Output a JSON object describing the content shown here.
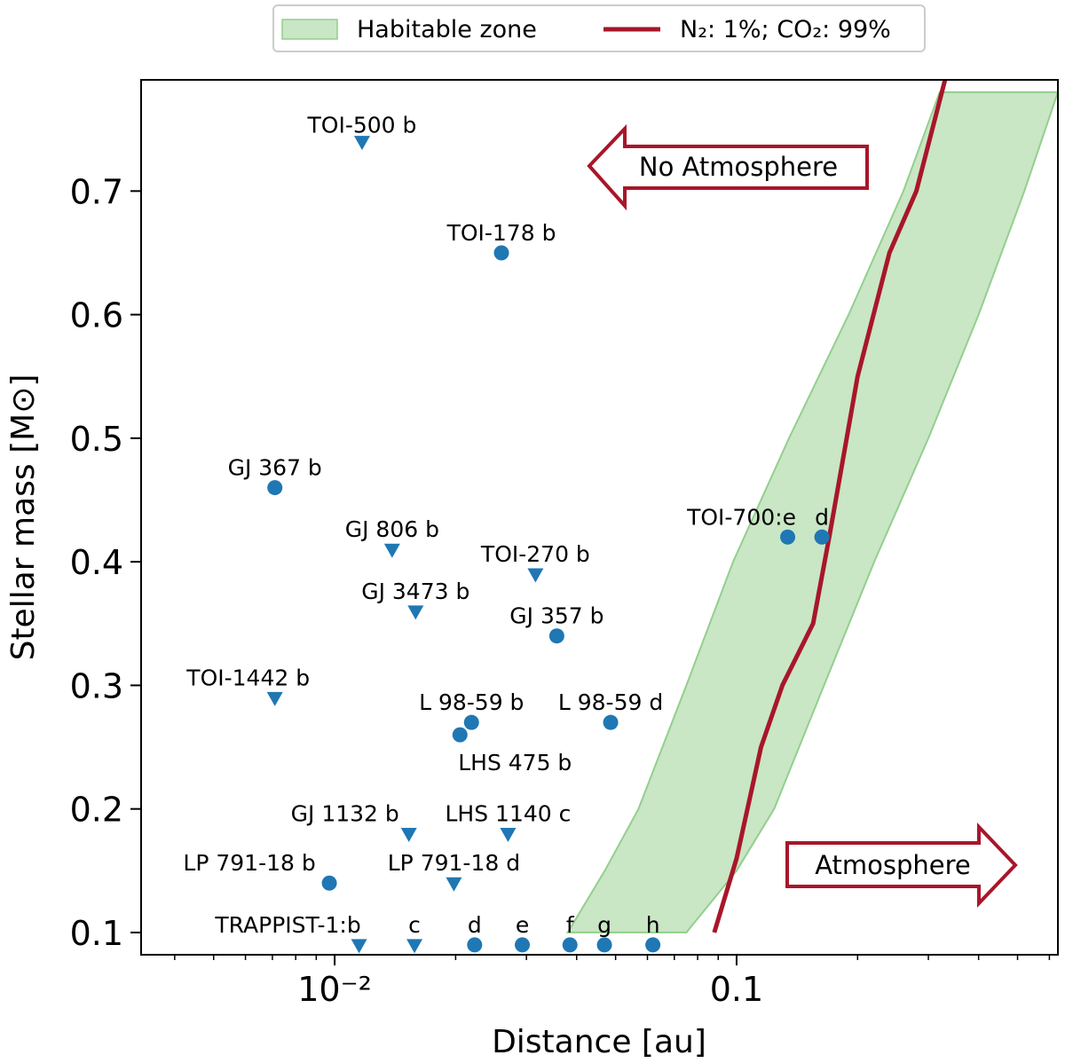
{
  "chart_data": {
    "type": "scatter",
    "xlabel": "Distance [au]",
    "ylabel": "Stellar mass [M⊙]",
    "xscale": "log",
    "xlim": [
      0.0033,
      0.63
    ],
    "ylim": [
      0.082,
      0.79
    ],
    "x_ticks": [
      {
        "value": 0.01,
        "label": "10⁻²"
      },
      {
        "value": 0.1,
        "label": "0.1"
      }
    ],
    "y_ticks": [
      0.1,
      0.2,
      0.3,
      0.4,
      0.5,
      0.6,
      0.7
    ],
    "y_tick_labels": [
      "0.1",
      "0.2",
      "0.3",
      "0.4",
      "0.5",
      "0.6",
      "0.7"
    ],
    "grid": false,
    "legend": {
      "placement": "top-center-outside",
      "entries": [
        {
          "type": "patch",
          "label": "Habitable zone"
        },
        {
          "type": "line",
          "label": "N₂: 1%; CO₂: 99%"
        }
      ]
    },
    "colors": {
      "marker": "#1f77b4",
      "line": "#a8162a",
      "zone_fill": "#c9e6c5",
      "zone_edge": "#93cf8d"
    },
    "habitable_zone": {
      "masses": [
        0.1,
        0.15,
        0.2,
        0.3,
        0.4,
        0.5,
        0.6,
        0.7,
        0.78
      ],
      "inner": [
        0.038,
        0.047,
        0.057,
        0.075,
        0.098,
        0.135,
        0.19,
        0.26,
        0.32
      ],
      "outer": [
        0.075,
        0.1,
        0.124,
        0.165,
        0.22,
        0.3,
        0.4,
        0.52,
        0.63
      ]
    },
    "series": [
      {
        "name": "N₂: 1%; CO₂: 99%",
        "type": "line",
        "x": [
          0.088,
          0.1,
          0.115,
          0.13,
          0.155,
          0.17,
          0.2,
          0.24,
          0.28,
          0.33
        ],
        "y": [
          0.1,
          0.16,
          0.25,
          0.3,
          0.35,
          0.42,
          0.55,
          0.65,
          0.7,
          0.79
        ]
      }
    ],
    "points": [
      {
        "label": "TOI-500 b",
        "x": 0.0117,
        "y": 0.74,
        "marker": "triangle",
        "label_dx": 0.0,
        "label_dy": -10
      },
      {
        "label": "TOI-178 b",
        "x": 0.026,
        "y": 0.65,
        "marker": "circle",
        "label_dx": 0.0,
        "label_dy": -14
      },
      {
        "label": "GJ 367 b",
        "x": 0.0071,
        "y": 0.46,
        "marker": "circle",
        "label_dx": 0.0,
        "label_dy": -14
      },
      {
        "label": "GJ 806 b",
        "x": 0.0139,
        "y": 0.41,
        "marker": "triangle",
        "label_dx": 0.0,
        "label_dy": -14
      },
      {
        "label": "TOI-270 b",
        "x": 0.0316,
        "y": 0.39,
        "marker": "triangle",
        "label_dx": 0.0,
        "label_dy": -14
      },
      {
        "label": "GJ 3473 b",
        "x": 0.0159,
        "y": 0.36,
        "marker": "triangle",
        "label_dx": 0.0,
        "label_dy": -14
      },
      {
        "label": "GJ 357 b",
        "x": 0.0357,
        "y": 0.34,
        "marker": "circle",
        "label_dx": 0.0,
        "label_dy": -14
      },
      {
        "label": "TOI-1442 b",
        "x": 0.0071,
        "y": 0.29,
        "marker": "triangle",
        "label_dx": -30,
        "label_dy": -14
      },
      {
        "label": "L 98-59 b",
        "x": 0.0219,
        "y": 0.27,
        "marker": "circle",
        "label_dx": 0.0,
        "label_dy": -14
      },
      {
        "label": "L 98-59 d",
        "x": 0.0486,
        "y": 0.27,
        "marker": "circle",
        "label_dx": 0.0,
        "label_dy": -14
      },
      {
        "label": "LHS 475 b",
        "x": 0.0205,
        "y": 0.26,
        "marker": "circle",
        "label_dx": 62,
        "label_dy": 40
      },
      {
        "label": "GJ 1132 b",
        "x": 0.0153,
        "y": 0.18,
        "marker": "triangle",
        "label_dx": -72,
        "label_dy": -14
      },
      {
        "label": "LHS 1140 c",
        "x": 0.027,
        "y": 0.18,
        "marker": "triangle",
        "label_dx": 0.0,
        "label_dy": -14
      },
      {
        "label": "LP 791-18 b",
        "x": 0.0097,
        "y": 0.14,
        "marker": "circle",
        "label_dx": -90,
        "label_dy": -14
      },
      {
        "label": "LP 791-18 d",
        "x": 0.0198,
        "y": 0.14,
        "marker": "triangle",
        "label_dx": 0.0,
        "label_dy": -14
      },
      {
        "label": "TRAPPIST-1:b",
        "x": 0.0115,
        "y": 0.09,
        "marker": "triangle",
        "label_dx": -80,
        "label_dy": -14
      },
      {
        "label": "c",
        "x": 0.0158,
        "y": 0.09,
        "marker": "triangle",
        "label_dx": 0.0,
        "label_dy": -14
      },
      {
        "label": "d",
        "x": 0.0223,
        "y": 0.09,
        "marker": "circle",
        "label_dx": 0.0,
        "label_dy": -14
      },
      {
        "label": "e",
        "x": 0.0293,
        "y": 0.09,
        "marker": "circle",
        "label_dx": 0.0,
        "label_dy": -14
      },
      {
        "label": "f",
        "x": 0.0385,
        "y": 0.09,
        "marker": "circle",
        "label_dx": 0.0,
        "label_dy": -14
      },
      {
        "label": "g",
        "x": 0.0469,
        "y": 0.09,
        "marker": "circle",
        "label_dx": 0.0,
        "label_dy": -14
      },
      {
        "label": "h",
        "x": 0.0619,
        "y": 0.09,
        "marker": "circle",
        "label_dx": 0.0,
        "label_dy": -14
      },
      {
        "label": "TOI-700:e",
        "x": 0.134,
        "y": 0.42,
        "marker": "circle",
        "label_dx": -52,
        "label_dy": -14
      },
      {
        "label": "d",
        "x": 0.163,
        "y": 0.42,
        "marker": "circle",
        "label_dx": 0.0,
        "label_dy": -14
      }
    ],
    "annotations": [
      {
        "text": "No Atmosphere",
        "direction": "left"
      },
      {
        "text": "Atmosphere",
        "direction": "right"
      }
    ]
  }
}
